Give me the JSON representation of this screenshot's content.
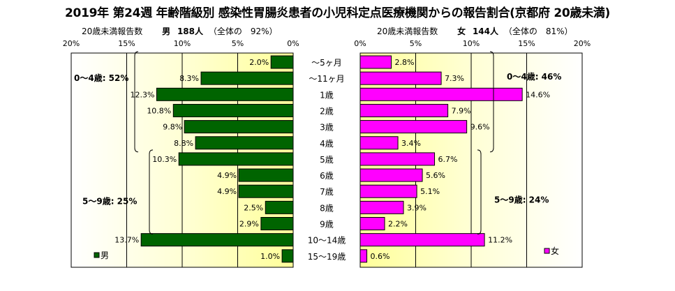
{
  "title": "2019年 第24週 年齢階級別 感染性胃腸炎患者の小児科定点医療機関からの報告割合(京都府 20歳未満)",
  "male_header": {
    "caption": "20歳未満報告数",
    "sex": "男",
    "count": "188人",
    "share": "（全体の　92%）"
  },
  "female_header": {
    "caption": "20歳未満報告数",
    "sex": "女",
    "count": "144人",
    "share": "（全体の　81%）"
  },
  "chart_data": {
    "type": "bar",
    "orientation": "horizontal-butterfly",
    "categories": [
      "～5ヶ月",
      "～11ヶ月",
      "1歳",
      "2歳",
      "3歳",
      "4歳",
      "5歳",
      "6歳",
      "7歳",
      "8歳",
      "9歳",
      "10～14歳",
      "15～19歳"
    ],
    "series": [
      {
        "name": "男",
        "color": "#006400",
        "values": [
          2.0,
          8.3,
          12.3,
          10.8,
          9.8,
          8.8,
          10.3,
          4.9,
          4.9,
          2.5,
          2.9,
          13.7,
          1.0
        ],
        "labels": [
          "2.0%",
          "8.3%",
          "12.3%",
          "10.8%",
          "9.8%",
          "8.8%",
          "10.3%",
          "4.9%",
          "4.9%",
          "2.5%",
          "2.9%",
          "13.7%",
          "1.0%"
        ]
      },
      {
        "name": "女",
        "color": "#ff00ff",
        "values": [
          2.8,
          7.3,
          14.6,
          7.9,
          9.6,
          3.4,
          6.7,
          5.6,
          5.1,
          3.9,
          2.2,
          11.2,
          0.6
        ],
        "labels": [
          "2.8%",
          "7.3%",
          "14.6%",
          "7.9%",
          "9.6%",
          "3.4%",
          "6.7%",
          "5.6%",
          "5.1%",
          "3.9%",
          "2.2%",
          "11.2%",
          "0.6%"
        ]
      }
    ],
    "xlim": [
      0,
      20
    ],
    "male_ticks": [
      "20%",
      "15%",
      "10%",
      "5%",
      "0%"
    ],
    "female_ticks": [
      "0%",
      "5%",
      "10%",
      "15%",
      "20%"
    ],
    "grid": true,
    "annotations": {
      "male_0_4": "0～4歳: 52%",
      "male_5_9": "5～9歳: 25%",
      "female_0_4": "0～4歳: 46%",
      "female_5_9": "5～9歳: 24%"
    },
    "legend": {
      "male": "男",
      "female": "女"
    }
  }
}
